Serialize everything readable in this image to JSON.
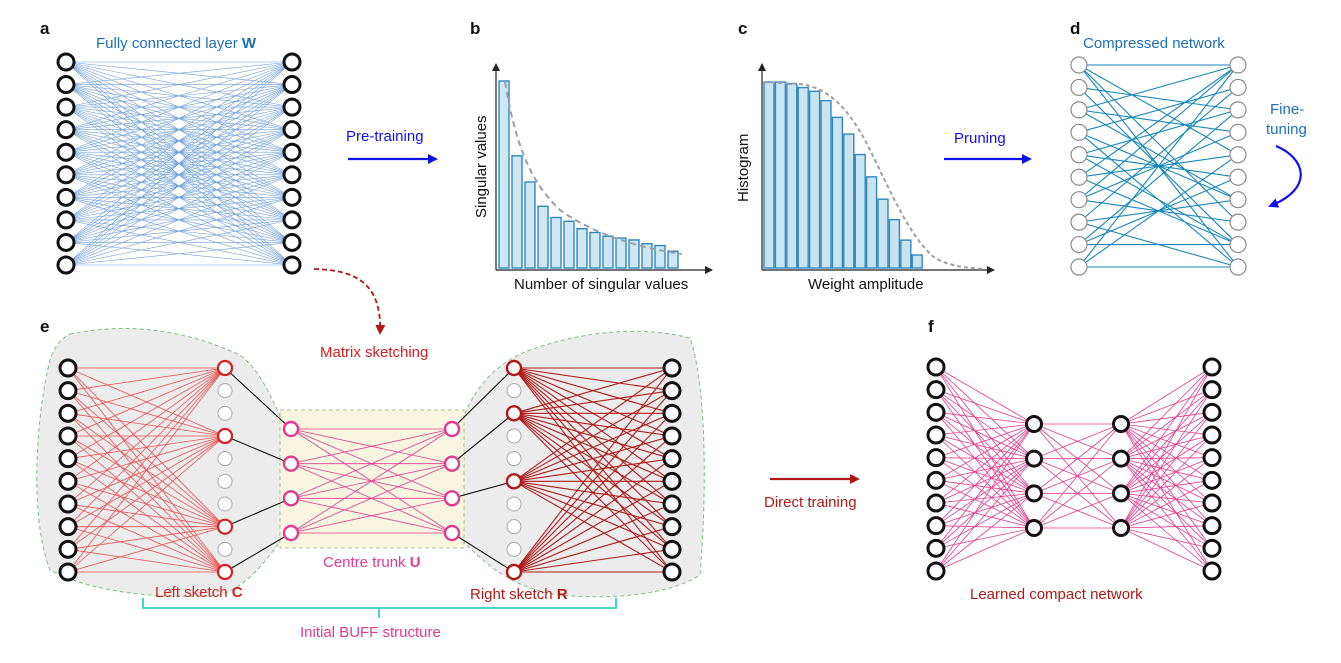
{
  "colors": {
    "blue_text": "#1f6fb5",
    "blue_edge": "#6f9fd8",
    "dark_blue": "#1787b8",
    "arrow_blue": "#1010e8",
    "red": "#d42020",
    "dark_red": "#b01818",
    "red_edge": "#ee4e4e",
    "dark_red_edge": "#b01a1a",
    "pink": "#e23a8e",
    "teal": "#2fd3c0",
    "grey_fill": "#ececec",
    "trunk_fill": "#f8f6e0"
  },
  "panels": {
    "a": {
      "letter": "a",
      "title_prefix": "Fully connected layer ",
      "title_bold": "W"
    },
    "b": {
      "letter": "b",
      "ylabel": "Singular values",
      "xlabel": "Number of singular values",
      "bars": [
        1.0,
        0.6,
        0.46,
        0.33,
        0.27,
        0.25,
        0.21,
        0.19,
        0.17,
        0.16,
        0.15,
        0.13,
        0.12,
        0.09
      ]
    },
    "c": {
      "letter": "c",
      "ylabel": "Histogram",
      "xlabel": "Weight amplitude",
      "bars": [
        1.0,
        1.0,
        0.99,
        0.97,
        0.95,
        0.9,
        0.81,
        0.72,
        0.61,
        0.49,
        0.37,
        0.26,
        0.15,
        0.07
      ]
    },
    "d": {
      "letter": "d",
      "title": "Compressed network",
      "finetune": [
        "Fine-",
        "tuning"
      ]
    },
    "e": {
      "letter": "e",
      "matrix_sketching": "Matrix sketching",
      "left_prefix": "Left sketch ",
      "left_bold": "C",
      "centre_prefix": "Centre trunk ",
      "centre_bold": "U",
      "right_prefix": "Right sketch ",
      "right_bold": "R",
      "buff": "Initial BUFF structure"
    },
    "f": {
      "letter": "f",
      "caption": "Learned compact network"
    }
  },
  "arrows": {
    "pretraining": "Pre-training",
    "pruning": "Pruning",
    "direct_training": "Direct training"
  }
}
